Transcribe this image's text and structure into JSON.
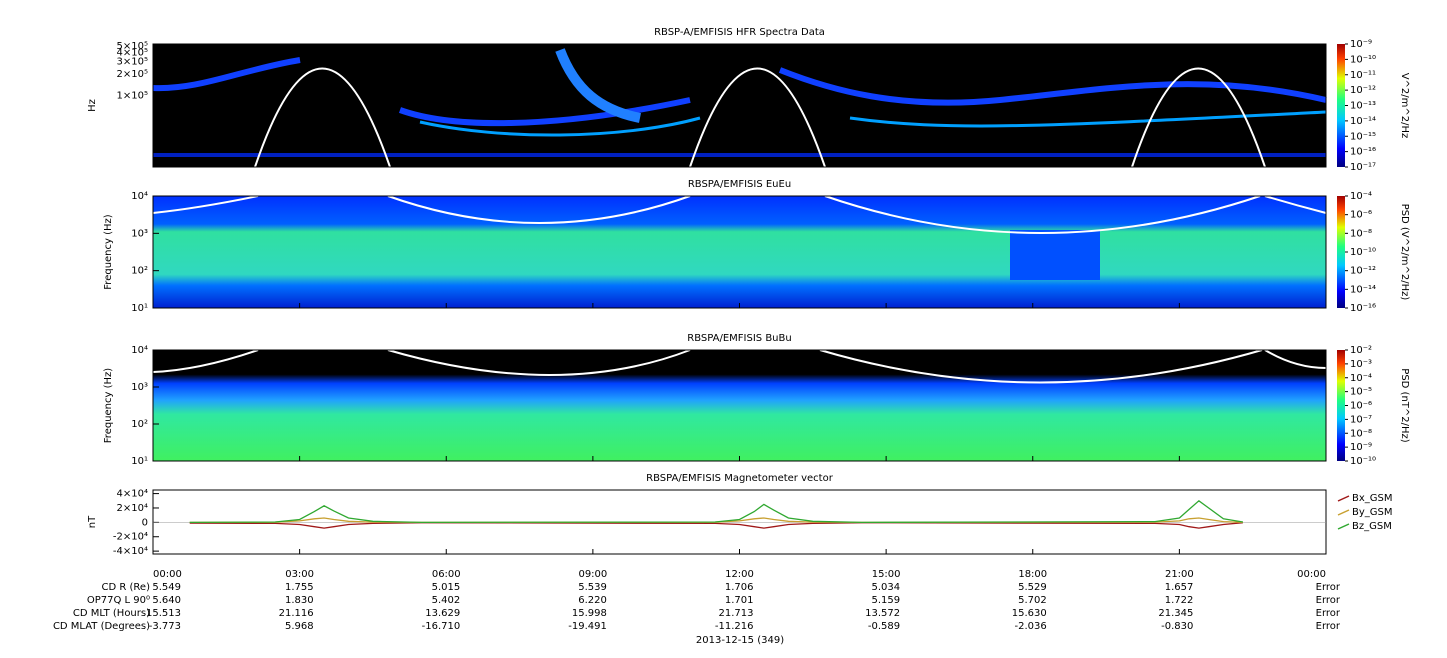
{
  "chart_data": [
    {
      "type": "spectrogram",
      "title": "RBSP-A/EMFISIS  HFR Spectra Data",
      "ylabel": "Hz",
      "log_y": true,
      "ylim": [
        10000,
        530000
      ],
      "yticks": [
        {
          "value": 100000,
          "label": "1×10⁵"
        },
        {
          "value": 200000,
          "label": "2×10⁵"
        },
        {
          "value": 300000,
          "label": "3×10⁵"
        },
        {
          "value": 400000,
          "label": "4×10⁵"
        },
        {
          "value": 500000,
          "label": "5×10⁵"
        }
      ],
      "colorbar": {
        "label": "V^2/m^2/Hz",
        "lim": [
          1e-17,
          1e-09
        ],
        "ticks": [
          {
            "value": 1e-09,
            "label": "10⁻⁹"
          },
          {
            "value": 1e-10,
            "label": "10⁻¹⁰"
          },
          {
            "value": 1e-11,
            "label": "10⁻¹¹"
          },
          {
            "value": 1e-12,
            "label": "10⁻¹²"
          },
          {
            "value": 1e-13,
            "label": "10⁻¹³"
          },
          {
            "value": 1e-14,
            "label": "10⁻¹⁴"
          },
          {
            "value": 1e-15,
            "label": "10⁻¹⁵"
          },
          {
            "value": 1e-16,
            "label": "10⁻¹⁶"
          },
          {
            "value": 1e-17,
            "label": "10⁻¹⁷"
          }
        ]
      }
    },
    {
      "type": "spectrogram",
      "title": "RBSPA/EMFISIS  EuEu",
      "ylabel": "Frequency (Hz)",
      "log_y": true,
      "ylim": [
        10,
        10000
      ],
      "yticks": [
        {
          "value": 10,
          "label": "10¹"
        },
        {
          "value": 100,
          "label": "10²"
        },
        {
          "value": 1000,
          "label": "10³"
        },
        {
          "value": 10000,
          "label": "10⁴"
        }
      ],
      "colorbar": {
        "label": "PSD (V^2/m^2/Hz)",
        "lim": [
          1e-16,
          0.0001
        ],
        "ticks": [
          {
            "value": 0.0001,
            "label": "10⁻⁴"
          },
          {
            "value": 1e-06,
            "label": "10⁻⁶"
          },
          {
            "value": 1e-08,
            "label": "10⁻⁸"
          },
          {
            "value": 1e-10,
            "label": "10⁻¹⁰"
          },
          {
            "value": 1e-12,
            "label": "10⁻¹²"
          },
          {
            "value": 1e-14,
            "label": "10⁻¹⁴"
          },
          {
            "value": 1e-16,
            "label": "10⁻¹⁶"
          }
        ]
      }
    },
    {
      "type": "spectrogram",
      "title": "RBSPA/EMFISIS  BuBu",
      "ylabel": "Frequency (Hz)",
      "log_y": true,
      "ylim": [
        10,
        10000
      ],
      "yticks": [
        {
          "value": 10,
          "label": "10¹"
        },
        {
          "value": 100,
          "label": "10²"
        },
        {
          "value": 1000,
          "label": "10³"
        },
        {
          "value": 10000,
          "label": "10⁴"
        }
      ],
      "colorbar": {
        "label": "PSD (nT^2/Hz)",
        "lim": [
          1e-10,
          0.01
        ],
        "ticks": [
          {
            "value": 0.01,
            "label": "10⁻²"
          },
          {
            "value": 0.001,
            "label": "10⁻³"
          },
          {
            "value": 0.0001,
            "label": "10⁻⁴"
          },
          {
            "value": 1e-05,
            "label": "10⁻⁵"
          },
          {
            "value": 1e-06,
            "label": "10⁻⁶"
          },
          {
            "value": 1e-07,
            "label": "10⁻⁷"
          },
          {
            "value": 1e-08,
            "label": "10⁻⁸"
          },
          {
            "value": 1e-09,
            "label": "10⁻⁹"
          },
          {
            "value": 1e-10,
            "label": "10⁻¹⁰"
          }
        ]
      }
    },
    {
      "type": "line",
      "title": "RBSPA/EMFISIS  Magnetometer vector",
      "ylabel": "nT",
      "ylim": [
        -44000,
        45000
      ],
      "yticks": [
        {
          "value": -40000,
          "label": "-4×10⁴"
        },
        {
          "value": -20000,
          "label": "-2×10⁴"
        },
        0,
        {
          "value": 20000,
          "label": "2×10⁴"
        },
        {
          "value": 40000,
          "label": "4×10⁴"
        }
      ],
      "xlim": [
        0,
        24
      ],
      "xticks": [
        {
          "value": 0,
          "label": "00:00"
        },
        {
          "value": 3,
          "label": "03:00"
        },
        {
          "value": 6,
          "label": "06:00"
        },
        {
          "value": 9,
          "label": "09:00"
        },
        {
          "value": 12,
          "label": "12:00"
        },
        {
          "value": 15,
          "label": "15:00"
        },
        {
          "value": 18,
          "label": "18:00"
        },
        {
          "value": 21,
          "label": "21:00"
        },
        {
          "value": 24,
          "label": "00:00"
        }
      ],
      "xlabel": "2013-12-15 (349)",
      "x": [
        0.75,
        2.5,
        3.0,
        3.3,
        3.5,
        3.7,
        4.0,
        4.5,
        5.5,
        11.5,
        12.0,
        12.3,
        12.5,
        12.7,
        13.0,
        13.5,
        14.5,
        20.5,
        21.0,
        21.2,
        21.4,
        21.6,
        21.9,
        22.3
      ],
      "series": [
        {
          "name": "Bx_GSM",
          "color": "#a01818",
          "values": [
            -1000,
            -1500,
            -3000,
            -6000,
            -8000,
            -6000,
            -3000,
            -1500,
            -500,
            -1500,
            -3000,
            -6000,
            -8000,
            -6000,
            -3000,
            -1500,
            -500,
            -1500,
            -3000,
            -6000,
            -8000,
            -6000,
            -3000,
            -500
          ]
        },
        {
          "name": "By_GSM",
          "color": "#c8a030",
          "values": [
            0,
            200,
            2000,
            5000,
            6000,
            4000,
            1500,
            300,
            0,
            200,
            2000,
            5000,
            6000,
            4000,
            1500,
            300,
            0,
            300,
            2000,
            5000,
            6000,
            4000,
            1000,
            0
          ]
        },
        {
          "name": "Bz_GSM",
          "color": "#30a830",
          "values": [
            0,
            500,
            4000,
            15000,
            23000,
            16000,
            6000,
            1500,
            0,
            500,
            4000,
            15000,
            25000,
            17000,
            6000,
            1500,
            0,
            1000,
            6000,
            18000,
            30000,
            20000,
            5000,
            500
          ]
        }
      ]
    }
  ],
  "ephemeris": {
    "rows": [
      {
        "label": "CD R (Re)",
        "values": [
          "5.549",
          "1.755",
          "5.015",
          "5.539",
          "1.706",
          "5.034",
          "5.529",
          "1.657",
          "Error"
        ]
      },
      {
        "label": "OP77Q L 90⁰",
        "values": [
          "5.640",
          "1.830",
          "5.402",
          "6.220",
          "1.701",
          "5.159",
          "5.702",
          "1.722",
          "Error"
        ]
      },
      {
        "label": "CD MLT (Hours)",
        "values": [
          "15.513",
          "21.116",
          "13.629",
          "15.998",
          "21.713",
          "13.572",
          "15.630",
          "21.345",
          "Error"
        ]
      },
      {
        "label": "CD MLAT (Degrees)",
        "values": [
          "-3.773",
          "5.968",
          "-16.710",
          "-19.491",
          "-11.216",
          "-0.589",
          "-2.036",
          "-0.830",
          "Error"
        ]
      }
    ]
  }
}
